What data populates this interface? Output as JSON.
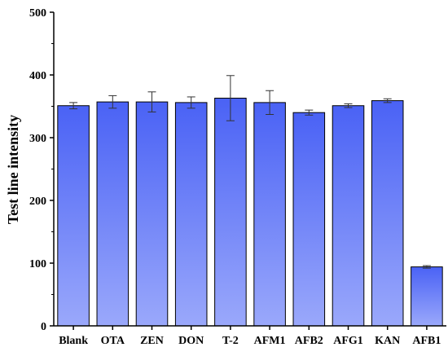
{
  "chart_data": {
    "type": "bar",
    "title": "",
    "xlabel": "",
    "ylabel": "Test line intensity",
    "ylim": [
      0,
      500
    ],
    "yticks": [
      0,
      100,
      200,
      300,
      400,
      500
    ],
    "grid": false,
    "categories": [
      "Blank",
      "OTA",
      "ZEN",
      "DON",
      "T-2",
      "AFM1",
      "AFB2",
      "AFG1",
      "KAN",
      "AFB1"
    ],
    "values": [
      351,
      357,
      357,
      356,
      363,
      356,
      340,
      351,
      359,
      94
    ],
    "errors": [
      5,
      10,
      16,
      9,
      36,
      19,
      4,
      3,
      3,
      2
    ],
    "bar_gradient": {
      "top": "#4a62f5",
      "bottom": "#9aa8fb"
    }
  }
}
